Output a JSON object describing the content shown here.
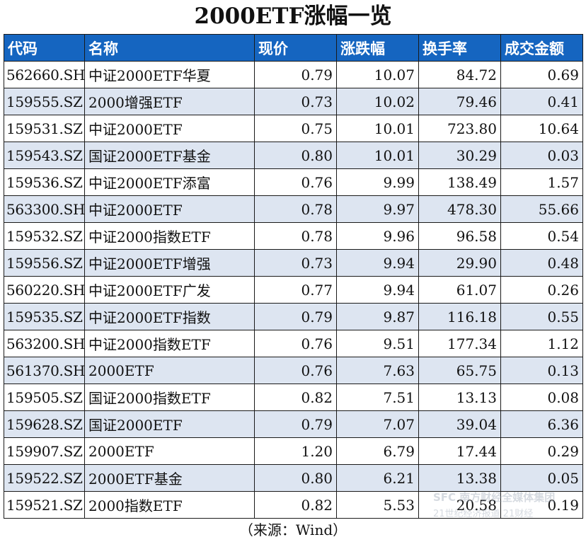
{
  "title": "2000ETF涨幅一览",
  "columns": [
    "代码",
    "名称",
    "现价",
    "涨跌幅",
    "换手率",
    "成交金额"
  ],
  "rows": [
    {
      "code": "562660.SH",
      "name": "中证2000ETF华夏",
      "price": "0.79",
      "change": "10.07",
      "turnover": "84.72",
      "amount": "0.69"
    },
    {
      "code": "159555.SZ",
      "name": "2000增强ETF",
      "price": "0.73",
      "change": "10.02",
      "turnover": "79.46",
      "amount": "0.41"
    },
    {
      "code": "159531.SZ",
      "name": "中证2000ETF",
      "price": "0.75",
      "change": "10.01",
      "turnover": "723.80",
      "amount": "10.64"
    },
    {
      "code": "159543.SZ",
      "name": "国证2000ETF基金",
      "price": "0.80",
      "change": "10.01",
      "turnover": "30.29",
      "amount": "0.03"
    },
    {
      "code": "159536.SZ",
      "name": "中证2000ETF添富",
      "price": "0.76",
      "change": "9.99",
      "turnover": "138.49",
      "amount": "1.57"
    },
    {
      "code": "563300.SH",
      "name": "中证2000ETF",
      "price": "0.78",
      "change": "9.97",
      "turnover": "478.30",
      "amount": "55.66"
    },
    {
      "code": "159532.SZ",
      "name": "中证2000指数ETF",
      "price": "0.78",
      "change": "9.96",
      "turnover": "96.58",
      "amount": "0.54"
    },
    {
      "code": "159556.SZ",
      "name": "中证2000ETF增强",
      "price": "0.73",
      "change": "9.94",
      "turnover": "29.90",
      "amount": "0.48"
    },
    {
      "code": "560220.SH",
      "name": "中证2000ETF广发",
      "price": "0.77",
      "change": "9.94",
      "turnover": "61.07",
      "amount": "0.26"
    },
    {
      "code": "159535.SZ",
      "name": "中证2000ETF指数",
      "price": "0.79",
      "change": "9.87",
      "turnover": "116.18",
      "amount": "0.55"
    },
    {
      "code": "563200.SH",
      "name": "中证2000指数ETF",
      "price": "0.76",
      "change": "9.51",
      "turnover": "177.34",
      "amount": "1.12"
    },
    {
      "code": "561370.SH",
      "name": "2000ETF",
      "price": "0.76",
      "change": "7.63",
      "turnover": "65.75",
      "amount": "0.13"
    },
    {
      "code": "159505.SZ",
      "name": "国证2000指数ETF",
      "price": "0.82",
      "change": "7.51",
      "turnover": "13.13",
      "amount": "0.08"
    },
    {
      "code": "159628.SZ",
      "name": "国证2000ETF",
      "price": "0.79",
      "change": "7.07",
      "turnover": "39.04",
      "amount": "6.36"
    },
    {
      "code": "159907.SZ",
      "name": "2000ETF",
      "price": "1.20",
      "change": "6.79",
      "turnover": "17.44",
      "amount": "0.29"
    },
    {
      "code": "159522.SZ",
      "name": "2000ETF基金",
      "price": "0.80",
      "change": "6.21",
      "turnover": "13.38",
      "amount": "0.05"
    },
    {
      "code": "159521.SZ",
      "name": "2000指数ETF",
      "price": "0.82",
      "change": "5.53",
      "turnover": "20.58",
      "amount": "0.19"
    }
  ],
  "source": "（来源：Wind）",
  "watermark": {
    "line1": "SFC 南方财经全媒体集团",
    "line2": "21世纪经济报道 21财经",
    "color": "#8a96a8"
  }
}
